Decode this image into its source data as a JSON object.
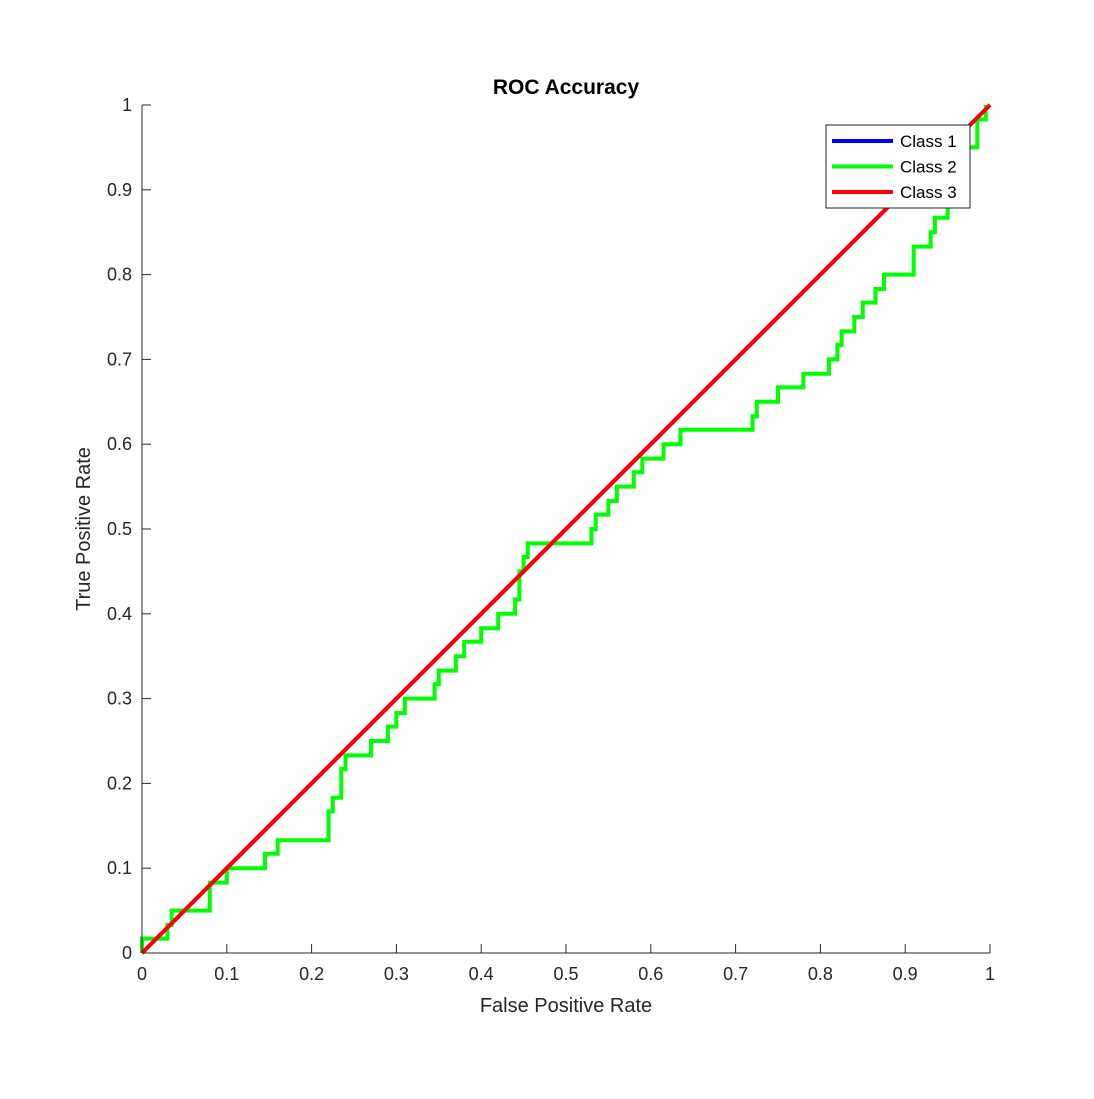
{
  "chart_data": {
    "type": "line",
    "title": "ROC Accuracy",
    "xlabel": "False Positive Rate",
    "ylabel": "True Positive Rate",
    "xlim": [
      0,
      1
    ],
    "ylim": [
      0,
      1
    ],
    "x_ticks": [
      "0",
      "0.1",
      "0.2",
      "0.3",
      "0.4",
      "0.5",
      "0.6",
      "0.7",
      "0.8",
      "0.9",
      "1"
    ],
    "y_ticks": [
      "0",
      "0.1",
      "0.2",
      "0.3",
      "0.4",
      "0.5",
      "0.6",
      "0.7",
      "0.8",
      "0.9",
      "1"
    ],
    "grid": false,
    "legend_position": "top-right",
    "series": [
      {
        "name": "Class 1",
        "color": "#0000ff",
        "x": [
          0,
          1
        ],
        "y": [
          0,
          1
        ]
      },
      {
        "name": "Class 2",
        "color": "#00ff00",
        "x": [
          0,
          0,
          0.005,
          0.005,
          0.03,
          0.03,
          0.035,
          0.035,
          0.08,
          0.08,
          0.095,
          0.095,
          0.1,
          0.1,
          0.145,
          0.145,
          0.16,
          0.16,
          0.22,
          0.22,
          0.225,
          0.225,
          0.235,
          0.235,
          0.24,
          0.24,
          0.27,
          0.27,
          0.29,
          0.29,
          0.3,
          0.3,
          0.31,
          0.31,
          0.345,
          0.345,
          0.35,
          0.35,
          0.37,
          0.37,
          0.38,
          0.38,
          0.4,
          0.4,
          0.42,
          0.42,
          0.44,
          0.44,
          0.445,
          0.445,
          0.45,
          0.45,
          0.455,
          0.455,
          0.53,
          0.53,
          0.535,
          0.535,
          0.55,
          0.55,
          0.56,
          0.56,
          0.58,
          0.58,
          0.59,
          0.59,
          0.615,
          0.615,
          0.635,
          0.635,
          0.72,
          0.72,
          0.725,
          0.725,
          0.75,
          0.75,
          0.78,
          0.78,
          0.81,
          0.81,
          0.82,
          0.82,
          0.825,
          0.825,
          0.84,
          0.84,
          0.85,
          0.85,
          0.865,
          0.865,
          0.875,
          0.875,
          0.91,
          0.91,
          0.93,
          0.93,
          0.935,
          0.935,
          0.95,
          0.95,
          0.97,
          0.97,
          0.985,
          0.985,
          0.995,
          0.995
        ],
        "y": [
          0,
          0.017,
          0.017,
          0.017,
          0.017,
          0.033,
          0.033,
          0.05,
          0.05,
          0.083,
          0.083,
          0.083,
          0.083,
          0.1,
          0.1,
          0.117,
          0.117,
          0.133,
          0.133,
          0.167,
          0.167,
          0.183,
          0.183,
          0.217,
          0.217,
          0.233,
          0.233,
          0.25,
          0.25,
          0.267,
          0.267,
          0.283,
          0.283,
          0.3,
          0.3,
          0.317,
          0.317,
          0.333,
          0.333,
          0.35,
          0.35,
          0.367,
          0.367,
          0.383,
          0.383,
          0.4,
          0.4,
          0.417,
          0.417,
          0.45,
          0.45,
          0.467,
          0.467,
          0.483,
          0.483,
          0.5,
          0.5,
          0.517,
          0.517,
          0.533,
          0.533,
          0.55,
          0.55,
          0.567,
          0.567,
          0.583,
          0.583,
          0.6,
          0.6,
          0.617,
          0.617,
          0.633,
          0.633,
          0.65,
          0.65,
          0.667,
          0.667,
          0.683,
          0.683,
          0.7,
          0.7,
          0.717,
          0.717,
          0.733,
          0.733,
          0.75,
          0.75,
          0.767,
          0.767,
          0.783,
          0.783,
          0.8,
          0.8,
          0.833,
          0.833,
          0.85,
          0.85,
          0.867,
          0.867,
          0.883,
          0.883,
          0.95,
          0.95,
          0.983,
          0.983,
          1.0
        ]
      },
      {
        "name": "Class 3",
        "color": "#ff0000",
        "x": [
          0,
          1
        ],
        "y": [
          0,
          1
        ]
      }
    ]
  }
}
